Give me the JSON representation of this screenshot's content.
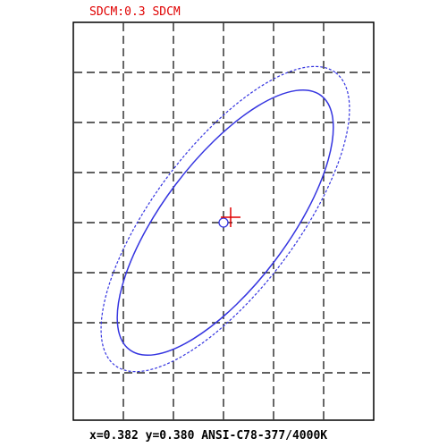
{
  "header": {
    "title": "SDCM:0.3 SDCM"
  },
  "footer": {
    "text": "x=0.382 y=0.380 ANSI-C78-377/4000K"
  }
}
